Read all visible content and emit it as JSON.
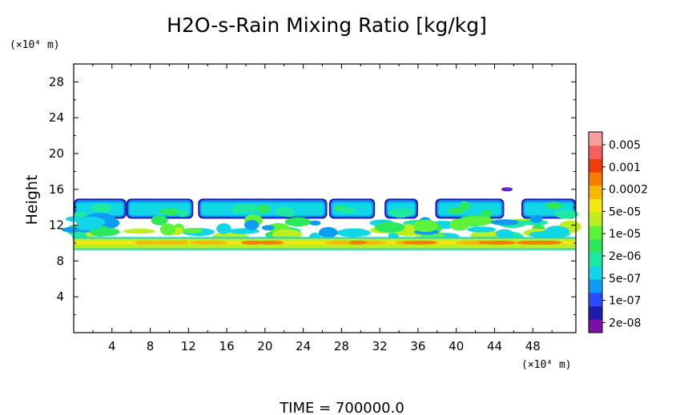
{
  "chart_data": {
    "type": "heatmap",
    "title": "H2O-s-Rain Mixing Ratio [kg/kg]",
    "ylabel": "Height",
    "x_unit": "(×10⁴ m)",
    "y_unit": "(×10⁴ m)",
    "xlim": [
      0,
      52.5
    ],
    "ylim": [
      0,
      30
    ],
    "x_ticks": [
      4,
      8,
      12,
      16,
      20,
      24,
      28,
      32,
      36,
      40,
      44,
      48
    ],
    "y_ticks": [
      4,
      8,
      12,
      16,
      20,
      24,
      28
    ],
    "footer": "TIME = 700000.0",
    "colorbar": {
      "labels": [
        "0.005",
        "0.001",
        "0.0002",
        "5e-05",
        "1e-05",
        "2e-06",
        "5e-07",
        "1e-07",
        "2e-08"
      ],
      "colors": [
        "#7b0fa8",
        "#1c1cb0",
        "#2a4bff",
        "#0c9cf6",
        "#11d6e6",
        "#1fe9a0",
        "#2de85a",
        "#5ff23a",
        "#bcee20",
        "#f5e80e",
        "#f7b806",
        "#f77d05",
        "#f23c0c",
        "#f26060",
        "#f7a0a0"
      ]
    },
    "bands": [
      {
        "name": "upper cloud layer",
        "y_range": [
          12.9,
          14.9
        ],
        "level": "1e-06"
      },
      {
        "name": "middle cloud layer",
        "y_range": [
          10.6,
          12.8
        ],
        "level": "1e-05"
      },
      {
        "name": "lower rain layer",
        "y_range": [
          9.4,
          10.5
        ],
        "level": "5e-05"
      },
      {
        "name": "isolated cell",
        "x": 45.3,
        "y": 16.0,
        "level": "1e-07"
      }
    ]
  }
}
